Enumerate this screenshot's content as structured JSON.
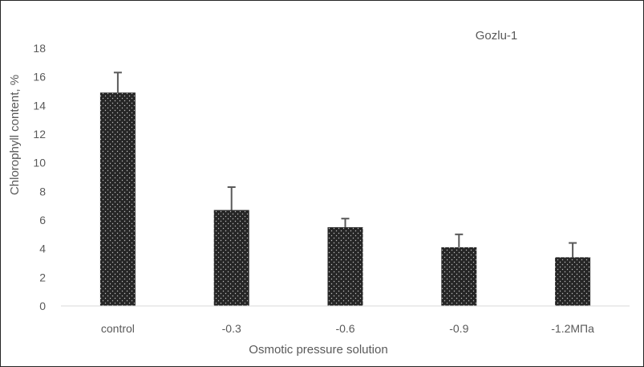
{
  "chart_data": {
    "type": "bar",
    "title": "Gozlu-1",
    "xlabel": "Osmotic pressure solution",
    "ylabel": "Chlorophyll content, %",
    "categories": [
      "control",
      "-0.3",
      "-0.6",
      "-0.9",
      "-1.2МПа"
    ],
    "values": [
      14.9,
      6.7,
      5.5,
      4.1,
      3.4
    ],
    "error_plus": [
      1.4,
      1.6,
      0.6,
      0.9,
      1.0
    ],
    "ylim": [
      0,
      18
    ],
    "yticks": [
      0,
      2,
      4,
      6,
      8,
      10,
      12,
      14,
      16,
      18
    ],
    "grid": false,
    "legend": "none",
    "colors": {
      "bar": "#262626",
      "dots": "#bfbfbf",
      "error_bar": "#595959",
      "axis": "#d9d9d9"
    }
  }
}
